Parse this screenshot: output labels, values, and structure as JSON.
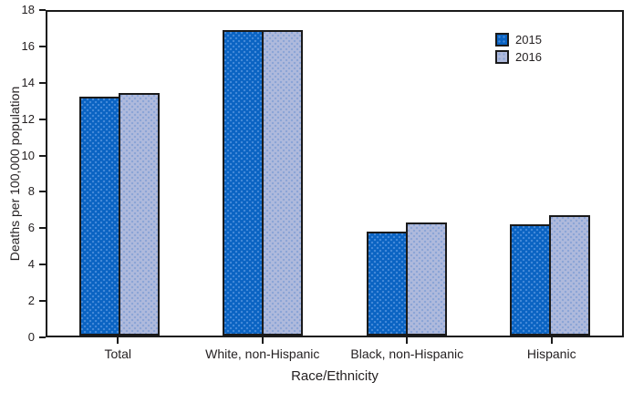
{
  "chart_data": {
    "type": "bar",
    "title": "",
    "xlabel": "Race/Ethnicity",
    "ylabel": "Deaths per 100,000 population",
    "ylim": [
      0,
      18
    ],
    "yticks": [
      0,
      2,
      4,
      6,
      8,
      10,
      12,
      14,
      16,
      18
    ],
    "grid": false,
    "legend_position": "top-right",
    "categories": [
      "Total",
      "White, non-Hispanic",
      "Black, non-Hispanic",
      "Hispanic"
    ],
    "series": [
      {
        "name": "2015",
        "color": "#0A63C2",
        "dot_color": "#4489D9",
        "values": [
          13.3,
          17.0,
          5.8,
          6.2
        ]
      },
      {
        "name": "2016",
        "color": "#AFBADC",
        "dot_color": "#8AA4D6",
        "values": [
          13.5,
          17.0,
          6.3,
          6.7
        ]
      }
    ]
  },
  "colors": {
    "axis": "#1A1A1A",
    "text": "#231F20",
    "background": "#FFFFFF"
  }
}
